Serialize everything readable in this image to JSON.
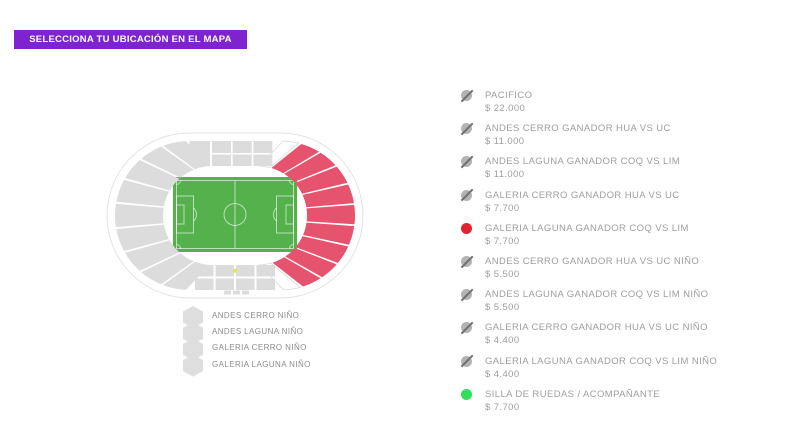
{
  "header": {
    "title": "SELECCIONA TU UBICACIÓN EN EL MAPA",
    "accent_color": "#7d23cf"
  },
  "map": {
    "colors": {
      "field": "#54b14c",
      "available": "#e6536e",
      "unavailable": "#dcdcdc",
      "empty": "#ffffff",
      "outline": "#e3e3e3",
      "wheelchair_dot": "#e8e63a"
    },
    "mini_legend": [
      {
        "label": "ANDES CERRO NIÑO"
      },
      {
        "label": "ANDES LAGUNA NIÑO"
      },
      {
        "label": "GALERIA CERRO NIÑO"
      },
      {
        "label": "GALERIA LAGUNA NIÑO"
      }
    ]
  },
  "legend": {
    "icon_colors": {
      "sold": "#b3b3b3",
      "available": "#e02330",
      "wheelchair": "#2ee05a"
    },
    "items": [
      {
        "name": "PACIFICO",
        "price": "$ 22.000",
        "status": "sold"
      },
      {
        "name": "ANDES CERRO GANADOR HUA VS UC",
        "price": "$ 11.000",
        "status": "sold"
      },
      {
        "name": "ANDES LAGUNA GANADOR COQ VS LIM",
        "price": "$ 11.000",
        "status": "sold"
      },
      {
        "name": "GALERIA CERRO GANADOR HUA VS UC",
        "price": "$ 7.700",
        "status": "sold"
      },
      {
        "name": "GALERIA LAGUNA GANADOR COQ VS LIM",
        "price": "$ 7.700",
        "status": "available"
      },
      {
        "name": "ANDES CERRO GANADOR HUA VS UC NIÑO",
        "price": "$ 5.500",
        "status": "sold"
      },
      {
        "name": "ANDES LAGUNA GANADOR COQ VS LIM NIÑO",
        "price": "$ 5.500",
        "status": "sold"
      },
      {
        "name": "GALERIA CERRO GANADOR HUA VS UC NIÑO",
        "price": "$ 4.400",
        "status": "sold"
      },
      {
        "name": "GALERIA LAGUNA GANADOR COQ VS LIM NIÑO",
        "price": "$ 4.400",
        "status": "sold"
      },
      {
        "name": "SILLA DE RUEDAS / ACOMPAÑANTE",
        "price": "$ 7.700",
        "status": "wheelchair"
      }
    ]
  }
}
